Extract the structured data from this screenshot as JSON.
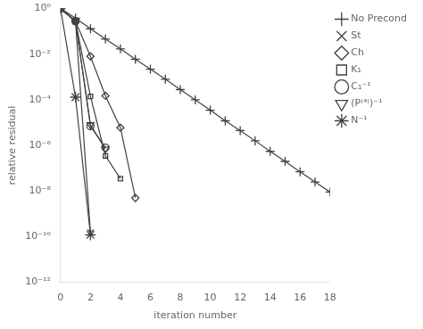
{
  "chart_data": {
    "type": "line",
    "x_label": "iteration number",
    "y_label": "relative residual",
    "log": "y",
    "grid": false,
    "legend": "upper right",
    "color": "#404040",
    "xlim": [
      0,
      18
    ],
    "xticks": [
      0,
      2,
      4,
      6,
      8,
      10,
      12,
      14,
      16,
      18
    ],
    "ylim": [
      1e-12,
      1
    ],
    "yticks": [
      {
        "value": 1e-12,
        "label": "10⁻¹²"
      },
      {
        "value": 1e-10,
        "label": "10⁻¹⁰"
      },
      {
        "value": 1e-08,
        "label": "10⁻⁸"
      },
      {
        "value": 1e-06,
        "label": "10⁻⁶"
      },
      {
        "value": 0.0001,
        "label": "10⁻⁴"
      },
      {
        "value": 0.01,
        "label": "10⁻²"
      },
      {
        "value": 1,
        "label": "10⁰"
      }
    ],
    "series": [
      {
        "name": "No Precond",
        "marker": "plus",
        "x": [
          0,
          1,
          2,
          3,
          4,
          5,
          6,
          7,
          8,
          9,
          10,
          11,
          12,
          13,
          14,
          15,
          16,
          17,
          18
        ],
        "values": [
          1.0,
          0.38,
          0.13,
          0.046,
          0.017,
          0.006,
          0.0022,
          0.0008,
          0.00028,
          0.0001,
          3.5e-05,
          1.2e-05,
          4.5e-06,
          1.6e-06,
          5.5e-07,
          2e-07,
          7e-08,
          2.5e-08,
          9e-09
        ]
      },
      {
        "name": "St",
        "marker": "x",
        "x": [
          0,
          1,
          2
        ],
        "values": [
          1.0,
          0.28,
          1.5e-10
        ]
      },
      {
        "name": "Ch",
        "marker": "diamond",
        "x": [
          0,
          1,
          2,
          3,
          4,
          5
        ],
        "values": [
          1.0,
          0.28,
          0.008,
          0.00015,
          6e-06,
          5e-09
        ]
      },
      {
        "name": "K₁",
        "marker": "square",
        "x": [
          0,
          1,
          2,
          3,
          4
        ],
        "values": [
          1.0,
          0.28,
          0.00014,
          3.5e-07,
          3.5e-08
        ]
      },
      {
        "name": "C₁⁻¹",
        "marker": "circle",
        "x": [
          0,
          1,
          2,
          3
        ],
        "values": [
          1.0,
          0.28,
          7e-06,
          8e-07
        ]
      },
      {
        "name": "(P⁽⁴⁾)⁻¹",
        "marker": "triangle_down",
        "x": [
          0,
          1,
          2,
          3
        ],
        "values": [
          1.0,
          0.28,
          8e-06,
          7e-07
        ]
      },
      {
        "name": "N⁻¹",
        "marker": "star",
        "x": [
          0,
          1,
          2
        ],
        "values": [
          1.0,
          0.00013,
          1.2e-10
        ]
      }
    ]
  }
}
